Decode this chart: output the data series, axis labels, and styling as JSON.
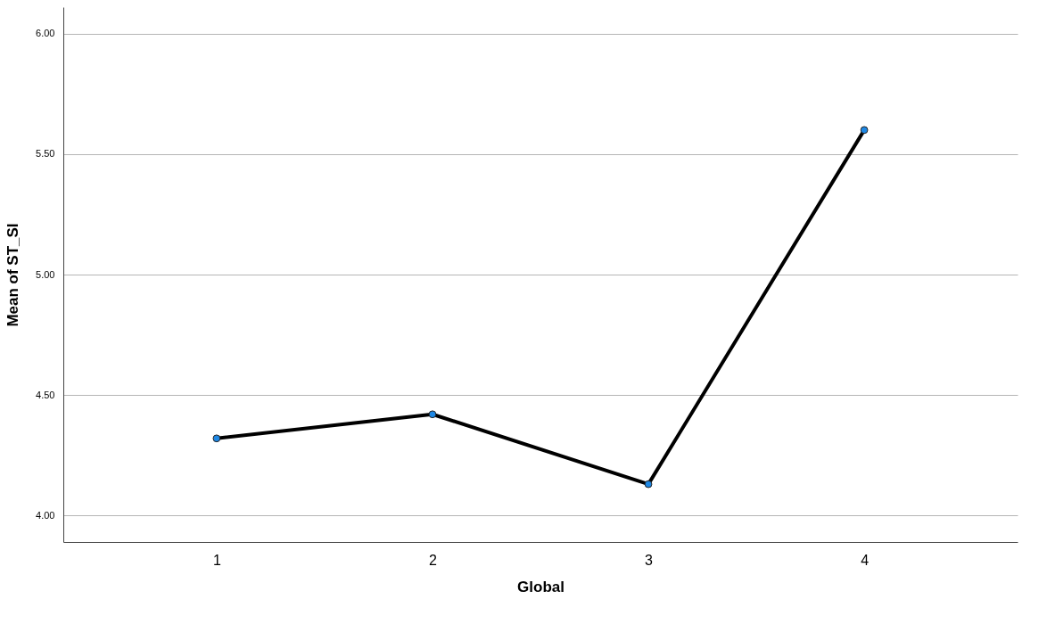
{
  "chart_data": {
    "type": "line",
    "xlabel": "Global",
    "ylabel": "Mean of ST_SI",
    "categories": [
      "1",
      "2",
      "3",
      "4"
    ],
    "series": [
      {
        "color": "#000000",
        "values": [
          4.32,
          4.42,
          4.13,
          5.6
        ]
      }
    ],
    "colors": [
      "#1e88e5",
      "#1e88e5",
      "#1e88e5",
      "#1e88e5"
    ],
    "ylim": [
      3.89,
      6.11
    ],
    "yticks": [
      {
        "value": 4,
        "label": "4.00"
      },
      {
        "value": 4.5,
        "label": "4.50"
      },
      {
        "value": 5,
        "label": "5.00"
      },
      {
        "value": 5.5,
        "label": "5.50"
      },
      {
        "value": 6,
        "label": "6.00"
      }
    ],
    "grid": "y",
    "marker": "circle",
    "line_style": "solid"
  }
}
